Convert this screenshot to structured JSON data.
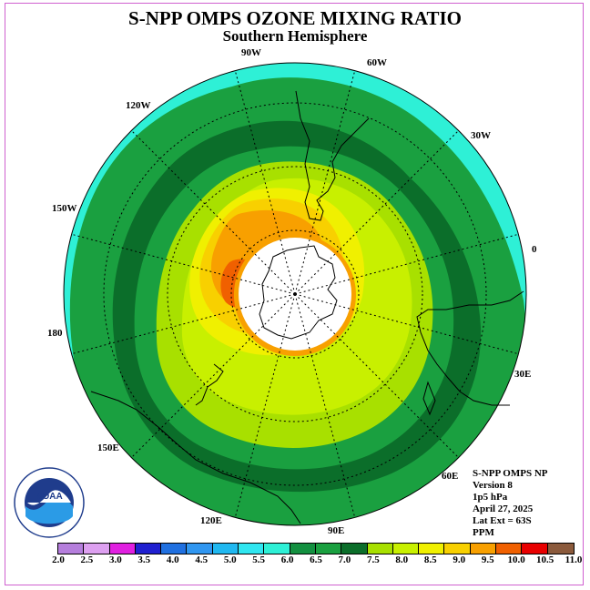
{
  "title": "S-NPP OMPS OZONE MIXING RATIO",
  "subtitle": "Southern Hemisphere",
  "longitude_labels": [
    {
      "id": "90w",
      "text": "90W"
    },
    {
      "id": "60w",
      "text": "60W"
    },
    {
      "id": "120w",
      "text": "120W"
    },
    {
      "id": "30w",
      "text": "30W"
    },
    {
      "id": "150w",
      "text": "150W"
    },
    {
      "id": "0",
      "text": "0"
    },
    {
      "id": "180",
      "text": "180"
    },
    {
      "id": "30e",
      "text": "30E"
    },
    {
      "id": "150e",
      "text": "150E"
    },
    {
      "id": "60e",
      "text": "60E"
    },
    {
      "id": "120e",
      "text": "120E"
    },
    {
      "id": "90e",
      "text": "90E"
    }
  ],
  "info": {
    "line1": "S-NPP OMPS NP",
    "line2": "Version 8",
    "line3": "1p5 hPa",
    "line4": "April 27, 2025",
    "line5": "Lat Ext = 63S",
    "line6": "PPM"
  },
  "logo": {
    "text": "NOAA",
    "ring_text": "NATIONAL OCEANIC AND ATMOSPHERIC ADMINISTRATION · U.S. DEPARTMENT OF COMMERCE"
  },
  "legend": {
    "ticks": [
      "2.0",
      "2.5",
      "3.0",
      "3.5",
      "4.0",
      "4.5",
      "5.0",
      "5.5",
      "6.0",
      "6.5",
      "7.0",
      "7.5",
      "8.0",
      "8.5",
      "9.0",
      "9.5",
      "10.0",
      "10.5",
      "11.0"
    ],
    "colors": [
      "#b57edc",
      "#dda0f0",
      "#e020e0",
      "#2020d0",
      "#2070e0",
      "#3096f0",
      "#20b8f0",
      "#30e6f0",
      "#2ef0d6",
      "#139040",
      "#1aa040",
      "#0b6e2a",
      "#a8e000",
      "#c8f000",
      "#f0f000",
      "#f8d000",
      "#f8a000",
      "#f06000",
      "#e80000",
      "#8b5a3c"
    ]
  },
  "map_colors": {
    "cyan": "#2ef0d6",
    "green_mid": "#1aa040",
    "green_dark": "#0b6e2a",
    "lime": "#a8e000",
    "yellowgreen": "#c8f000",
    "yellow": "#f0f000",
    "gold": "#f8d000",
    "orange": "#f8a000",
    "deep_orange": "#f06000",
    "center_blank": "#ffffff"
  },
  "chart_data": {
    "type": "heatmap",
    "projection": "polar stereographic, Southern Hemisphere",
    "lat_extent": "63S",
    "pressure_level_hPa": 1.5,
    "units": "PPM",
    "color_scale_min": 2.0,
    "color_scale_max": 11.0,
    "color_scale_step": 0.5,
    "fields": [
      {
        "region": "outer rim (~Pacific/Australia side)",
        "value": "5.5-6.0"
      },
      {
        "region": "outer band",
        "value": "6.5-7.0"
      },
      {
        "region": "middle band",
        "value": "7.0-7.5"
      },
      {
        "region": "inner band",
        "value": "7.5-8.5"
      },
      {
        "region": "near pole, 150W-120W sector",
        "value": "9.0-10.0"
      },
      {
        "region": "polar cap",
        "value": "no data"
      }
    ]
  }
}
